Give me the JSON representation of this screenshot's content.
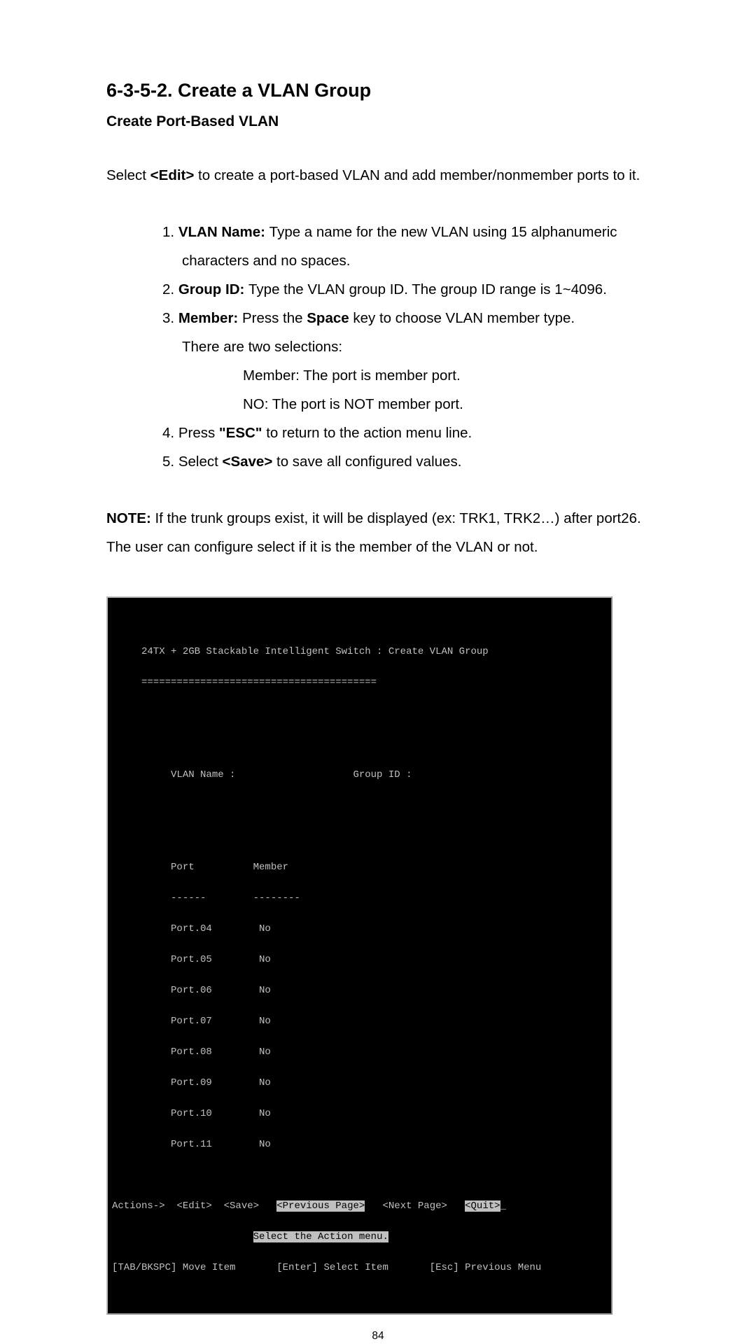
{
  "heading1": "6-3-5-2. Create a VLAN Group",
  "heading2": "Create Port-Based VLAN",
  "intro_a": "Select ",
  "intro_b": "<Edit>",
  "intro_c": " to create a port-based VLAN and add member/nonmember ports to it.",
  "list": {
    "i1": {
      "n": "1.",
      "label": "VLAN Name: ",
      "rest": "Type a name for the new VLAN using 15 alphanumeric",
      "cont": "characters and no spaces."
    },
    "i2": {
      "n": "2.",
      "label": "Group ID: ",
      "rest": "Type the VLAN group ID. The group ID range is 1~4096."
    },
    "i3": {
      "n": "3.",
      "label": "Member:",
      "rest": "   Press the ",
      "rest_b": "Space",
      "rest_c": " key to choose VLAN member type.",
      "cont1": "There are two selections:",
      "sub1": "Member: The port is member port.",
      "sub2": "NO: The port is NOT member port."
    },
    "i4": {
      "n": "4.",
      "a": "Press ",
      "b": "\"ESC\"",
      "c": " to return to the action menu line."
    },
    "i5": {
      "n": "5.",
      "a": "Select ",
      "b": "<Save>",
      "c": " to save all configured values."
    }
  },
  "note_label": "NOTE:",
  "note_text": " If the trunk groups exist, it will be displayed (ex: TRK1, TRK2…) after port26. The user can configure select if it is the member of the VLAN or not.",
  "terminal": {
    "title": "     24TX + 2GB Stackable Intelligent Switch : Create VLAN Group",
    "divider": "     ========================================",
    "vlan_line": "          VLAN Name :                    Group ID :",
    "port_hdr": "          Port          Member",
    "port_div": "          ------        --------",
    "rows": [
      "          Port.04        No",
      "          Port.05        No",
      "          Port.06        No",
      "          Port.07        No",
      "          Port.08        No",
      "          Port.09        No",
      "          Port.10        No",
      "          Port.11        No"
    ],
    "actions_pre": "Actions->  <Edit>  <Save>   ",
    "actions_inv1": "<Previous Page>",
    "actions_mid": "   <Next Page>   ",
    "actions_inv2": "<Quit>",
    "actions_tail_cursor": "_",
    "select_inv_pre_pad": "                        ",
    "select_inv": "Select the Action menu.",
    "help": "[TAB/BKSPC] Move Item       [Enter] Select Item       [Esc] Previous Menu"
  },
  "page_number": "84"
}
